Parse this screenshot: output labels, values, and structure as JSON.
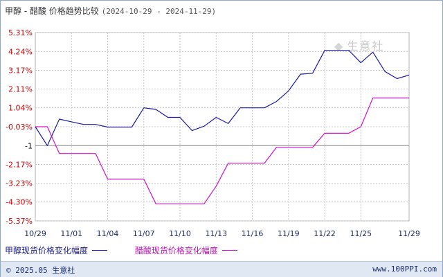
{
  "title": "甲醇 - 醋酸 价格趋势比较",
  "date_range": "(2024-10-29 - 2024-11-29)",
  "watermark": "生意社",
  "footer": {
    "copyright": "© 2025.05 生意社",
    "url": "www.100PPI.com"
  },
  "colors": {
    "methanol": "#1a1aa0",
    "acetic_acid": "#d010c8",
    "grid": "#c8c8c8",
    "baseline": "#888888"
  },
  "chart_data": {
    "type": "line",
    "title": "甲醇 - 醋酸 价格趋势比较",
    "xlabel": "",
    "ylabel": "",
    "y_ticks": [
      "5.31%",
      "4.24%",
      "3.17%",
      "2.11%",
      "1.04%",
      "-0.03%",
      "-1",
      "-2.17%",
      "-3.23%",
      "-4.30%",
      "-5.37%"
    ],
    "y_tick_values": [
      5.31,
      4.24,
      3.17,
      2.11,
      1.04,
      -0.03,
      -1.1,
      -2.17,
      -3.23,
      -4.3,
      -5.37
    ],
    "y_tick_colors": [
      "#cc0000",
      "#cc0000",
      "#cc0000",
      "#cc0000",
      "#cc0000",
      "#cc0000",
      "#000000",
      "#cc0000",
      "#cc0000",
      "#cc0000",
      "#cc0000"
    ],
    "ylim": [
      -5.37,
      5.31
    ],
    "baseline_value": -1.1,
    "x_tick_labels": [
      "10/29",
      "11/01",
      "11/04",
      "11/07",
      "11/10",
      "11/13",
      "11/16",
      "11/19",
      "11/22",
      "11/25",
      "11/29"
    ],
    "x": [
      "10/29",
      "10/30",
      "10/31",
      "11/01",
      "11/02",
      "11/03",
      "11/04",
      "11/05",
      "11/06",
      "11/07",
      "11/08",
      "11/09",
      "11/10",
      "11/11",
      "11/12",
      "11/13",
      "11/14",
      "11/15",
      "11/16",
      "11/17",
      "11/18",
      "11/19",
      "11/20",
      "11/21",
      "11/22",
      "11/23",
      "11/24",
      "11/25",
      "11/26",
      "11/27",
      "11/28",
      "11/29"
    ],
    "series": [
      {
        "name": "甲醇现货价格变化幅度",
        "color": "#1a1aa0",
        "values": [
          -0.03,
          -1.1,
          0.4,
          0.25,
          0.1,
          0.1,
          -0.05,
          -0.05,
          -0.05,
          1.04,
          0.95,
          0.5,
          0.5,
          -0.25,
          0.0,
          0.5,
          0.15,
          1.04,
          1.04,
          1.04,
          1.4,
          2.0,
          2.95,
          3.0,
          4.3,
          4.3,
          4.3,
          3.6,
          4.2,
          3.1,
          2.7,
          2.9
        ]
      },
      {
        "name": "醋酸现货价格变化幅度",
        "color": "#d010c8",
        "values": [
          -0.03,
          -0.03,
          -1.55,
          -1.55,
          -1.55,
          -1.55,
          -3.0,
          -3.0,
          -3.0,
          -3.0,
          -4.4,
          -4.4,
          -4.4,
          -4.4,
          -4.4,
          -3.4,
          -2.1,
          -2.1,
          -2.1,
          -2.1,
          -1.2,
          -1.2,
          -1.2,
          -1.2,
          -0.4,
          -0.4,
          -0.4,
          -0.03,
          1.6,
          1.6,
          1.6,
          1.6
        ]
      }
    ],
    "grid": true,
    "legend_position": "bottom-left"
  }
}
